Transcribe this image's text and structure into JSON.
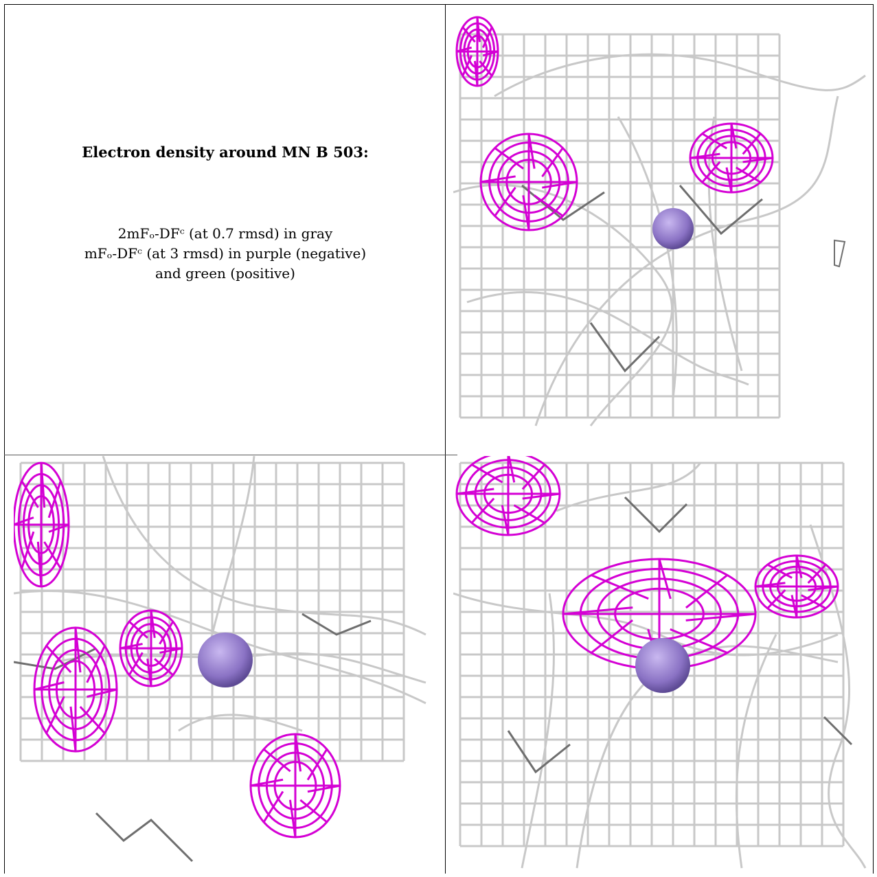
{
  "caption": {
    "title": "Electron density around MN B 503:",
    "line1": "2mFₒ-DFᶜ (at 0.7 rmsd) in gray",
    "line2": "mFₒ-DFᶜ (at 3 rmsd) in purple (negative)",
    "line3": "and green (positive)"
  },
  "colors": {
    "mesh_light": "#c8c8c8",
    "mesh_dark": "#6e6e6e",
    "difference_negative": "#d400d4",
    "atom": "#8a72c4"
  },
  "panels": [
    {
      "name": "view-top-right",
      "atom": "MN"
    },
    {
      "name": "view-bottom-left",
      "atom": "MN"
    },
    {
      "name": "view-bottom-right",
      "atom": "MN"
    }
  ]
}
